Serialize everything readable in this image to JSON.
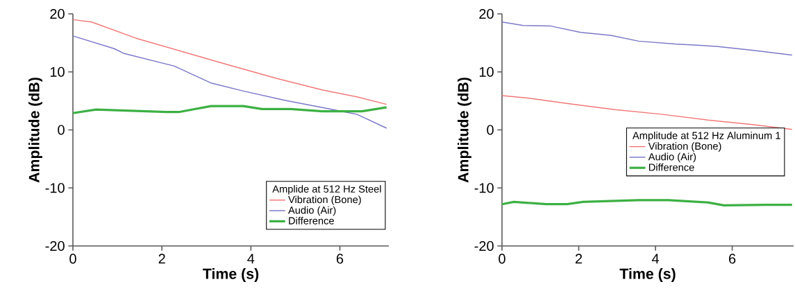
{
  "chart_data": [
    {
      "type": "line",
      "xlabel": "Time (s)",
      "ylabel": "Amplitude (dB)",
      "legend_title": "Amplide at 512 Hz Steel",
      "legend": "bottom right",
      "xlim": [
        0,
        7.1
      ],
      "ylim": [
        -20,
        20
      ],
      "xticks": [
        0,
        2,
        4,
        6
      ],
      "yticks": [
        -20,
        -10,
        0,
        10,
        20
      ],
      "series": [
        {
          "name": "Vibration (Bone)",
          "color": "#f07878",
          "x": [
            0,
            0.42,
            1.42,
            2.5,
            3.54,
            4.57,
            5.6,
            6.38,
            7.05
          ],
          "values": [
            19.0,
            18.6,
            15.8,
            13.4,
            11.1,
            8.9,
            6.9,
            5.7,
            4.4
          ]
        },
        {
          "name": "Audio (Air)",
          "color": "#7a78c8",
          "x": [
            0,
            0.93,
            1.14,
            2.28,
            3.1,
            3.83,
            4.76,
            5.85,
            6.38,
            7.05
          ],
          "values": [
            16.2,
            14.0,
            13.2,
            11.0,
            8.1,
            6.7,
            5.1,
            3.5,
            2.7,
            0.3
          ]
        },
        {
          "name": "Difference",
          "color": "#3cb043",
          "x": [
            0,
            0.52,
            2.1,
            2.4,
            3.1,
            3.83,
            4.25,
            4.9,
            5.6,
            6.5,
            7.05
          ],
          "values": [
            2.9,
            3.5,
            3.1,
            3.1,
            4.1,
            4.1,
            3.6,
            3.6,
            3.2,
            3.2,
            3.9
          ]
        }
      ]
    },
    {
      "type": "line",
      "xlabel": "Time (s)",
      "ylabel": "Amplitude (dB)",
      "legend_title": "Amplitude at 512 Hz Aluminum 1",
      "legend": "right",
      "xlim": [
        0,
        7.6
      ],
      "ylim": [
        -20,
        20
      ],
      "xticks": [
        0,
        2,
        4,
        6
      ],
      "yticks": [
        -20,
        -10,
        0,
        10,
        20
      ],
      "series": [
        {
          "name": "Vibration (Bone)",
          "color": "#f07878",
          "x": [
            0,
            0.67,
            1.75,
            2.95,
            4.15,
            5.36,
            6.56,
            7.56
          ],
          "values": [
            5.9,
            5.5,
            4.5,
            3.5,
            2.7,
            1.7,
            0.9,
            0.1
          ]
        },
        {
          "name": "Audio (Air)",
          "color": "#7a78c8",
          "x": [
            0,
            0.55,
            1.27,
            2.05,
            2.83,
            3.56,
            4.51,
            5.6,
            6.56,
            7.56
          ],
          "values": [
            18.6,
            18.0,
            17.9,
            16.8,
            16.3,
            15.3,
            14.8,
            14.4,
            13.7,
            12.9
          ]
        },
        {
          "name": "Difference",
          "color": "#3cb043",
          "x": [
            0,
            0.31,
            1.15,
            1.7,
            2.11,
            3.56,
            4.34,
            5.36,
            5.78,
            6.86,
            7.56
          ],
          "values": [
            -12.8,
            -12.4,
            -12.8,
            -12.8,
            -12.4,
            -12.1,
            -12.1,
            -12.5,
            -13.0,
            -12.9,
            -12.9
          ]
        }
      ]
    }
  ]
}
